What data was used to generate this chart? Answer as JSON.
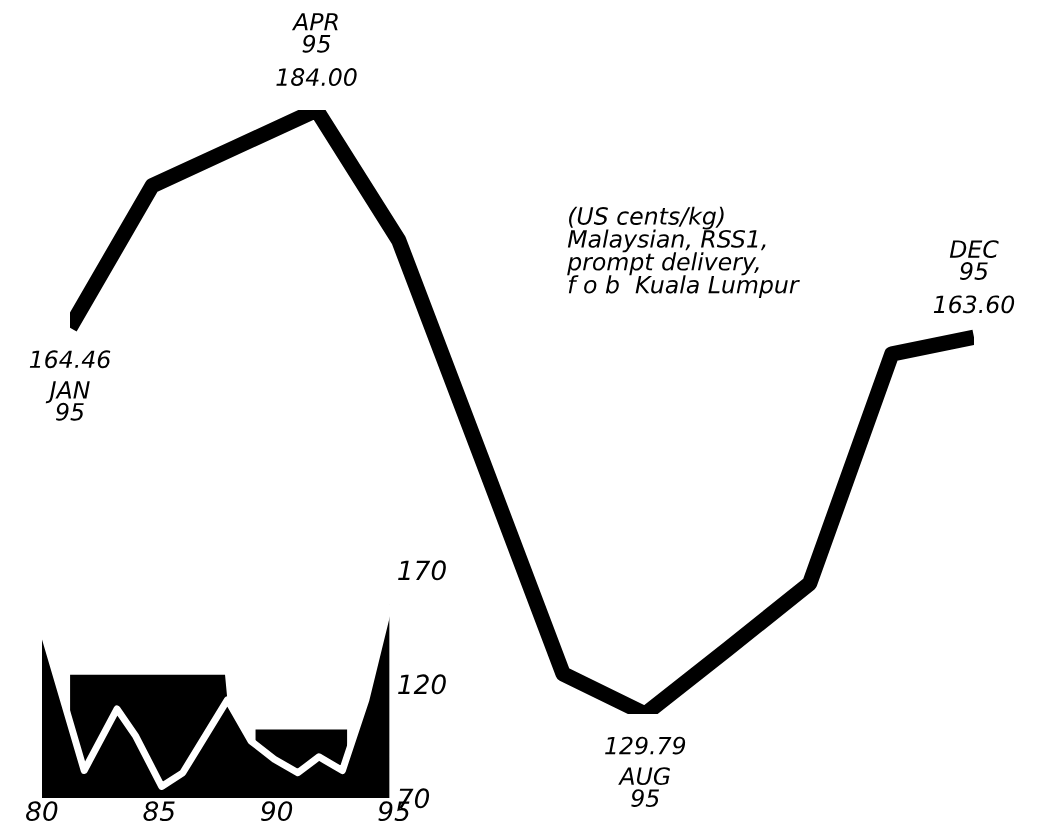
{
  "chart_data": [
    {
      "type": "line",
      "categories": [
        null,
        null,
        null,
        null,
        null,
        null,
        null,
        null,
        null,
        null,
        null,
        null
      ],
      "series": [
        {
          "color": "#000000",
          "values": [
            164.46,
            177.2,
            180.6,
            184.0,
            172.3,
            152.9,
            133.4,
            129.79,
            135.6,
            141.5,
            162.1,
            163.6
          ],
          "value_labels": [
            "164.46",
            null,
            null,
            "184.00",
            null,
            null,
            null,
            "129.79",
            null,
            null,
            null,
            "163.60"
          ]
        }
      ],
      "annotations": [
        "JAN\n95",
        "APR\n95",
        "AUG\n95",
        "DEC\n95",
        "(US cents/kg)\nMalaysian, RSS1,\nprompt delivery,\nf o b  Kuala Lumpur"
      ]
    },
    {
      "type": "area",
      "series": [
        {
          "type": "area",
          "color": "#000000",
          "x": [
            80,
            81.2,
            81.2,
            87.8,
            87.9,
            88.9,
            89.1,
            89.1,
            93,
            93,
            93.8,
            94.8
          ],
          "values": [
            145,
            103,
            124,
            124,
            113,
            95,
            94,
            100,
            100,
            88,
            113,
            155
          ]
        },
        {
          "type": "line",
          "color": "#ffffff",
          "x": [
            80,
            81.8,
            83.2,
            84.0,
            85.1,
            86.0,
            87.9,
            88.9,
            89.9,
            90.9,
            91.8,
            92.8,
            93.8,
            94.8
          ],
          "values": [
            145,
            82,
            109,
            97,
            75,
            81,
            113,
            95,
            87,
            81,
            88,
            82,
            113,
            155
          ]
        }
      ],
      "xlim": [
        80,
        95
      ],
      "ylim": [
        70,
        170
      ],
      "xticks": [
        80,
        85,
        90,
        95
      ],
      "yticks": [
        70,
        120,
        170
      ]
    }
  ]
}
